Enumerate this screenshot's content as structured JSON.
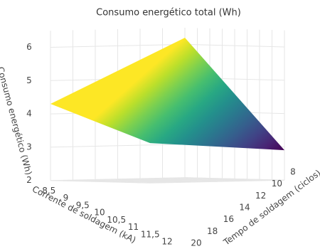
{
  "chart_data": {
    "type": "surface",
    "title": "Consumo energético total (Wh)",
    "x_label": "Corrente de soldagem (kA)",
    "y_label": "Tempo de soldagem (ciclos)",
    "z_label": "Consumo energético (Wh)",
    "x": [
      8,
      12
    ],
    "y": [
      8,
      20
    ],
    "z": [
      [
        6.2,
        4.3
      ],
      [
        2.9,
        3.2
      ]
    ],
    "xlim": [
      8,
      12
    ],
    "ylim": [
      8,
      20
    ],
    "zlim": [
      2,
      6.5
    ],
    "xticks": [
      {
        "value": 8.5,
        "label": "8,5"
      },
      9,
      {
        "value": 9.5,
        "label": "9,5"
      },
      10,
      {
        "value": 10.5,
        "label": "10,5"
      },
      11,
      {
        "value": 11.5,
        "label": "11,5"
      },
      12
    ],
    "yticks": [
      8,
      10,
      12,
      14,
      16,
      18,
      20
    ],
    "zticks": [
      2,
      3,
      4,
      5,
      6
    ],
    "colorscale": "Viridis",
    "grid": true
  }
}
